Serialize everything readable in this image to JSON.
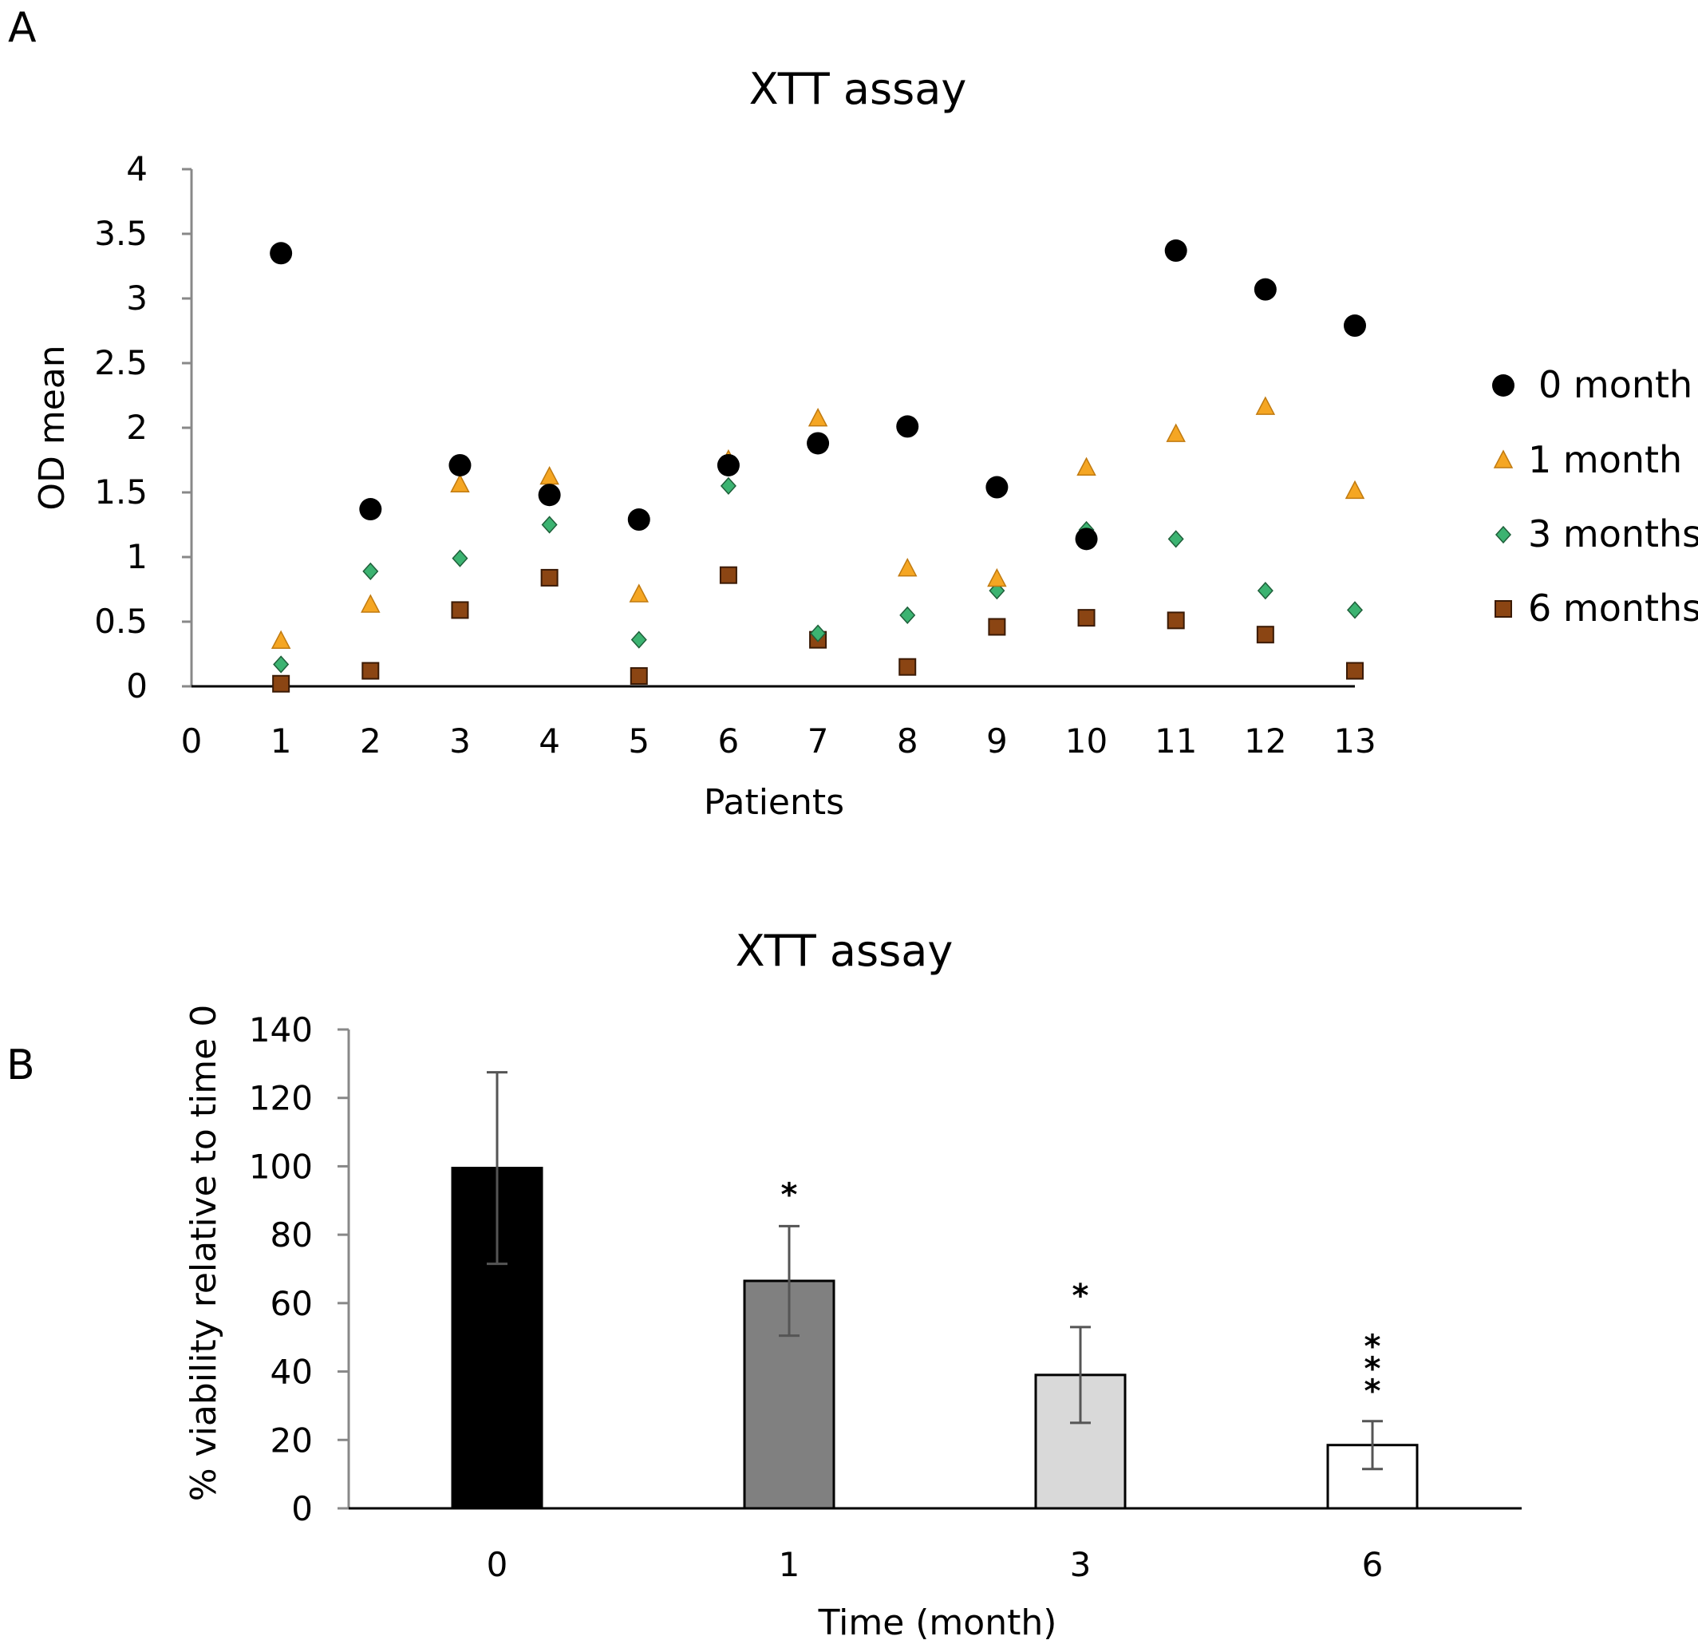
{
  "panel_labels": {
    "a": "A",
    "b": "B"
  },
  "chart_data": [
    {
      "type": "scatter",
      "title": "XTT assay",
      "xlabel": "Patients",
      "ylabel": "OD mean",
      "xlim": [
        0,
        13
      ],
      "ylim": [
        0,
        4
      ],
      "x_ticks": [
        "0",
        "1",
        "2",
        "3",
        "4",
        "5",
        "6",
        "7",
        "8",
        "9",
        "10",
        "11",
        "12",
        "13"
      ],
      "y_ticks": [
        "0",
        "0.5",
        "1",
        "1.5",
        "2",
        "2.5",
        "3",
        "3.5",
        "4"
      ],
      "y_tick_values": [
        0,
        0.5,
        1,
        1.5,
        2,
        2.5,
        3,
        3.5,
        4
      ],
      "legend_position": "right",
      "grid": false,
      "x": [
        1,
        2,
        3,
        4,
        5,
        6,
        7,
        8,
        9,
        10,
        11,
        12,
        13
      ],
      "series": [
        {
          "name": "0 month",
          "marker": "circle",
          "color": "#000000",
          "values": [
            3.35,
            1.37,
            1.71,
            1.48,
            1.29,
            1.71,
            1.88,
            2.01,
            1.54,
            1.14,
            3.37,
            3.07,
            2.79
          ]
        },
        {
          "name": "1 month",
          "marker": "triangle",
          "color": "#F5A623",
          "values": [
            0.35,
            0.63,
            1.56,
            1.62,
            0.71,
            1.75,
            2.07,
            0.91,
            0.83,
            1.69,
            1.95,
            2.16,
            1.51
          ]
        },
        {
          "name": "3 months",
          "marker": "diamond",
          "color": "#3CB371",
          "values": [
            0.17,
            0.89,
            0.99,
            1.25,
            0.36,
            1.55,
            0.41,
            0.55,
            0.74,
            1.21,
            1.14,
            0.74,
            0.59
          ]
        },
        {
          "name": "6 months",
          "marker": "square",
          "color": "#8B4513",
          "values": [
            0.02,
            0.12,
            0.59,
            0.84,
            0.08,
            0.86,
            0.36,
            0.15,
            0.46,
            0.53,
            0.51,
            0.4,
            0.12
          ]
        }
      ]
    },
    {
      "type": "bar",
      "title": "XTT assay",
      "xlabel": "Time (month)",
      "ylabel": "% viability relative to time 0",
      "ylim": [
        0,
        140
      ],
      "y_ticks": [
        "0",
        "20",
        "40",
        "60",
        "80",
        "100",
        "120",
        "140"
      ],
      "y_tick_values": [
        0,
        20,
        40,
        60,
        80,
        100,
        120,
        140
      ],
      "categories": [
        "0",
        "1",
        "3",
        "6"
      ],
      "values": [
        99.5,
        66.5,
        39,
        18.5
      ],
      "errors": [
        28,
        16,
        14,
        7
      ],
      "colors": [
        "#000000",
        "#808080",
        "#D9D9D9",
        "#FFFFFF"
      ],
      "significance": [
        "",
        "*",
        "*",
        "***"
      ],
      "grid": false
    }
  ]
}
